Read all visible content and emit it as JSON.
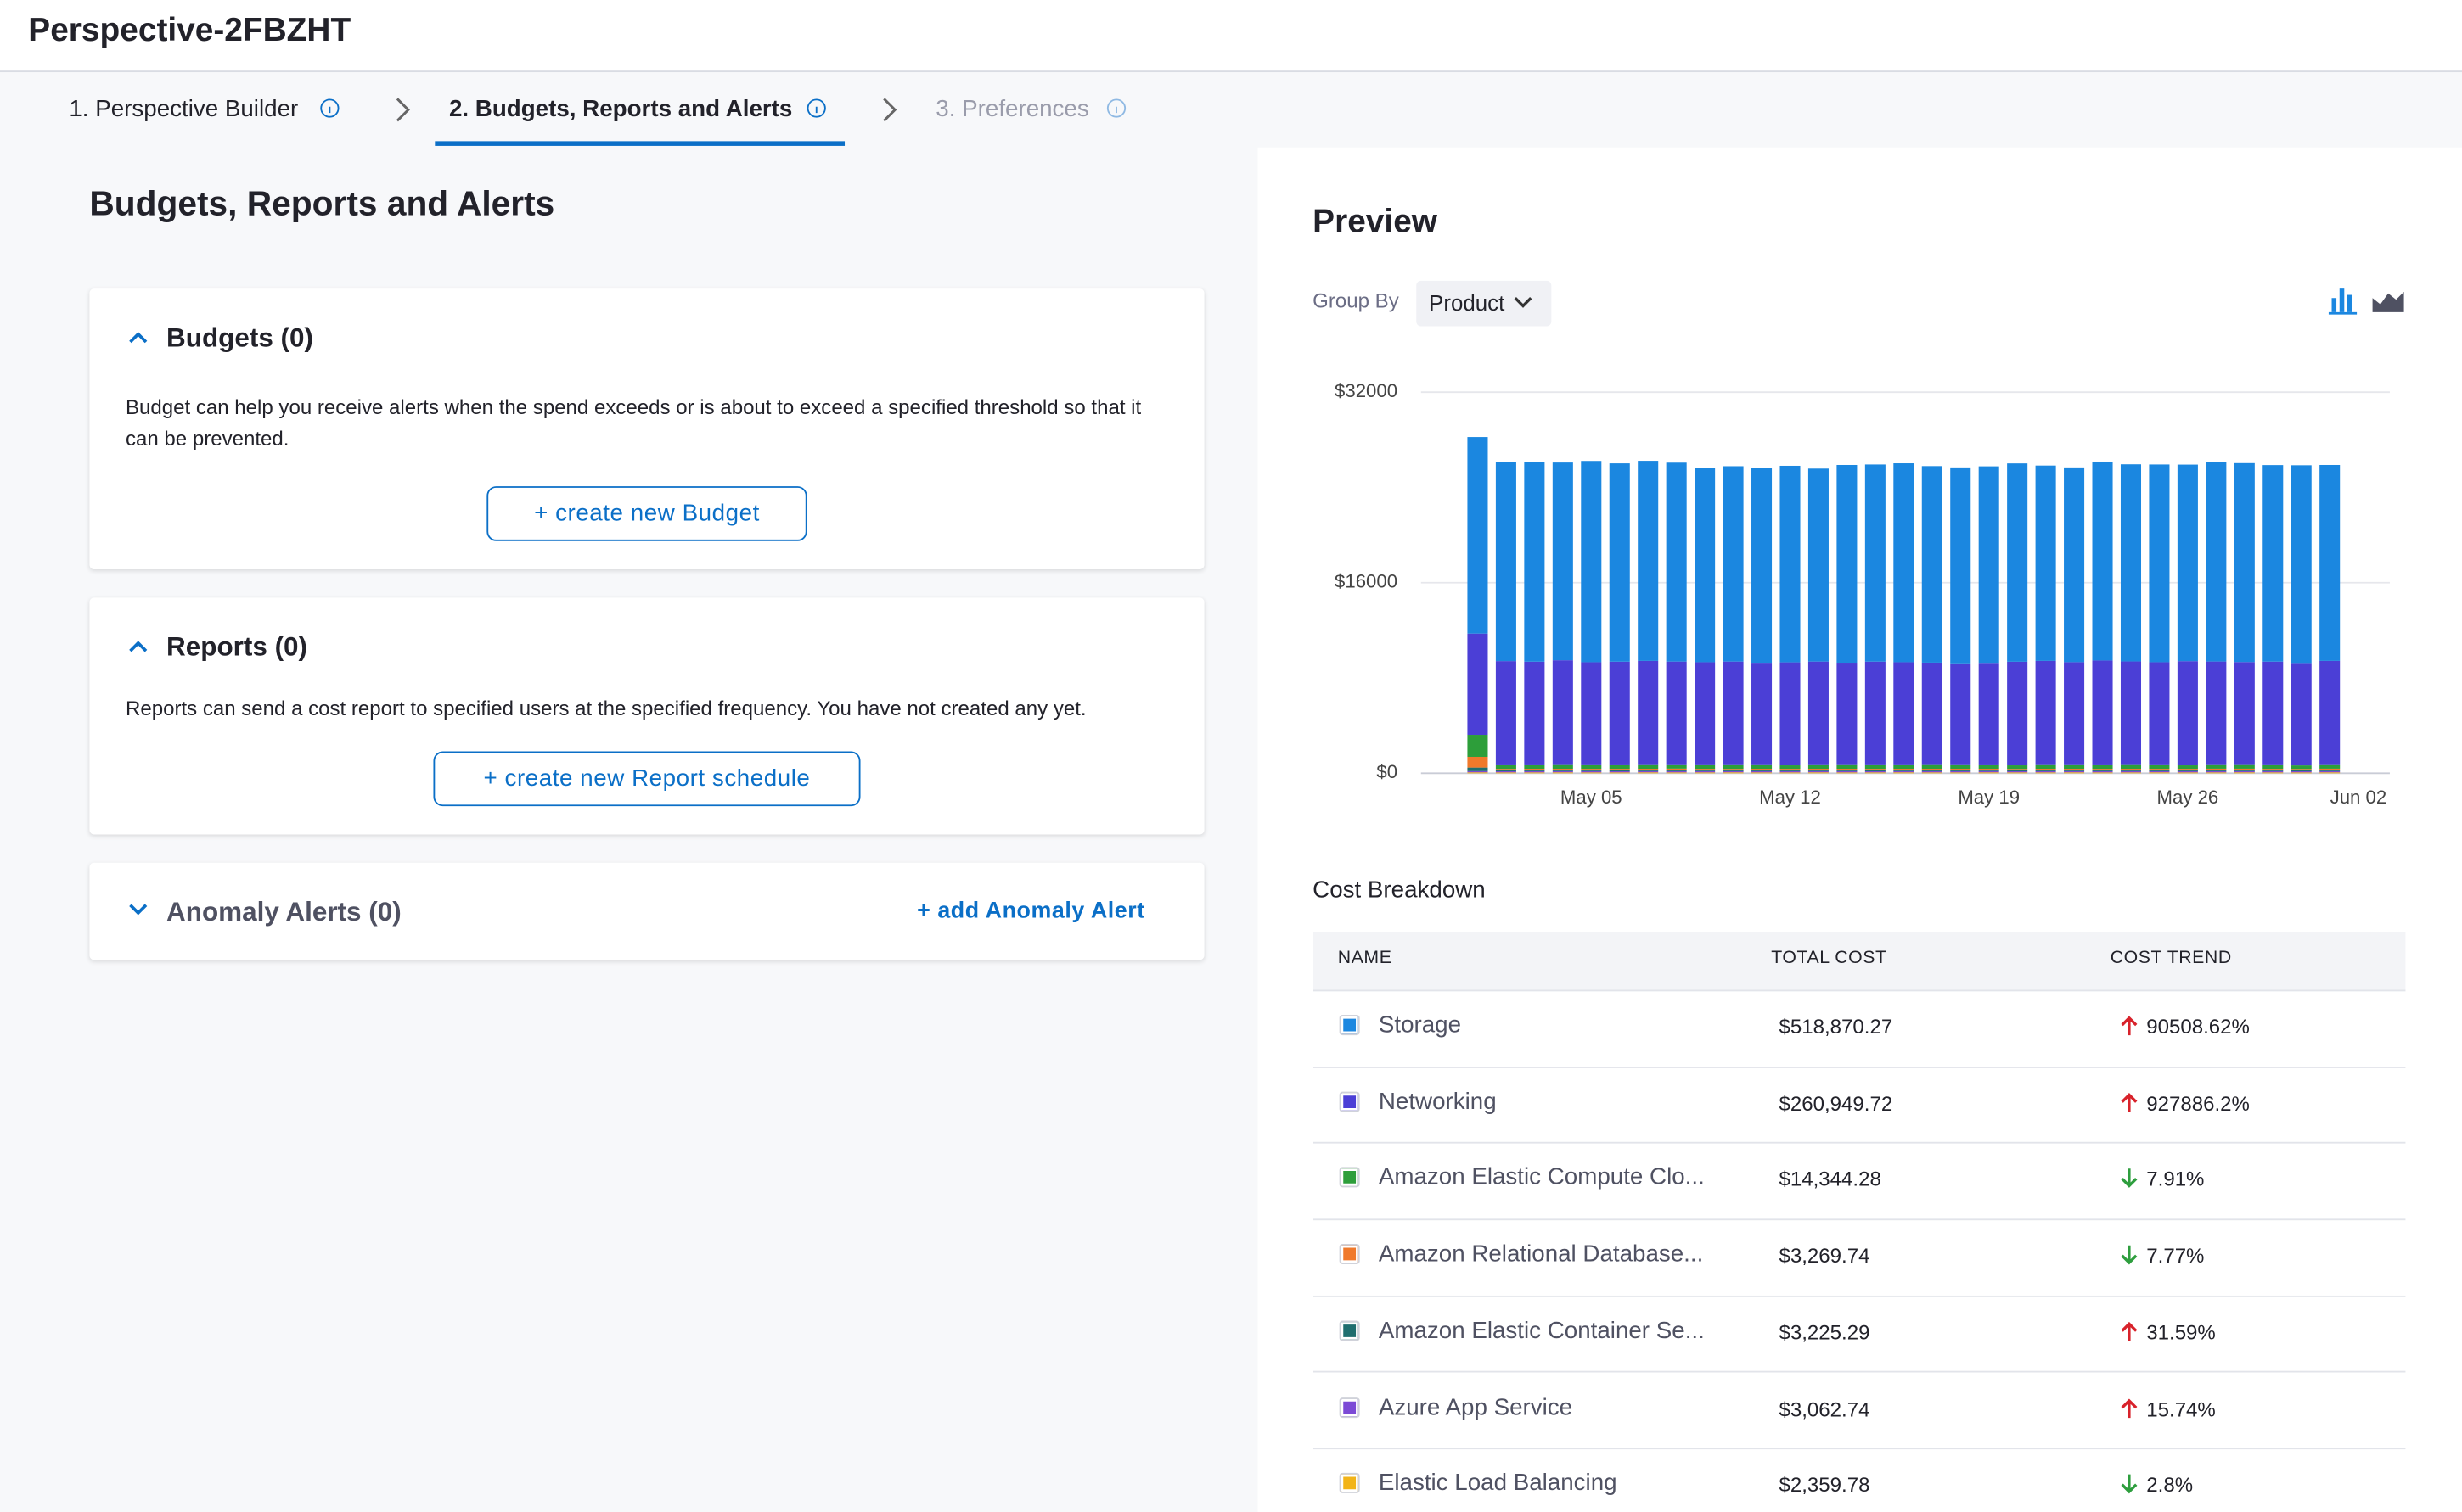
{
  "header": {
    "title": "Perspective-2FBZHT"
  },
  "steps": [
    "1. Perspective Builder",
    "2. Budgets, Reports and Alerts",
    "3. Preferences"
  ],
  "section_title": "Budgets, Reports and Alerts",
  "budgets": {
    "title": "Budgets (0)",
    "text": "Budget can help you receive alerts when the spend exceeds or is about to exceed a specified threshold so that it can be prevented.",
    "button": "+ create new Budget"
  },
  "reports": {
    "title": "Reports (0)",
    "text": "Reports can send a cost report to specified users at the specified frequency. You have not created any yet.",
    "button": "+ create new Report schedule"
  },
  "anomaly": {
    "title": "Anomaly Alerts (0)",
    "button": "+ add Anomaly Alert"
  },
  "preview": {
    "title": "Preview",
    "group_by_label": "Group By",
    "group_by_value": "Product"
  },
  "chart_data": {
    "type": "bar",
    "stacked": true,
    "grid": true,
    "categories": [
      null,
      null,
      null,
      null,
      "May 05",
      null,
      null,
      null,
      null,
      null,
      null,
      "May 12",
      null,
      null,
      null,
      null,
      null,
      null,
      "May 19",
      null,
      null,
      null,
      null,
      null,
      null,
      "May 26",
      null,
      null,
      null,
      null,
      null,
      null,
      "Jun 02"
    ],
    "ylim": [
      0,
      32000
    ],
    "yticks": [
      {
        "value": 0,
        "label": "$0"
      },
      {
        "value": 16000,
        "label": "$16000"
      },
      {
        "value": 32000,
        "label": "$32000"
      }
    ],
    "series": [
      {
        "name": "Storage",
        "color": "#1b87e0",
        "values": [
          16500,
          16700,
          16750,
          16600,
          16900,
          16650,
          16800,
          16700,
          16300,
          16400,
          16350,
          16500,
          16200,
          16600,
          16550,
          16700,
          16500,
          16450,
          16500,
          16650,
          16400,
          16350,
          16700,
          16550,
          16600,
          16500,
          16750,
          16700,
          16500,
          16600,
          16450,
          null,
          null
        ]
      },
      {
        "name": "Networking",
        "color": "#4b3fd6",
        "values": [
          8500,
          8750,
          8700,
          8800,
          8650,
          8700,
          8750,
          8700,
          8650,
          8700,
          8600,
          8650,
          8700,
          8600,
          8700,
          8650,
          8600,
          8550,
          8600,
          8700,
          8750,
          8650,
          8800,
          8700,
          8650,
          8750,
          8700,
          8650,
          8700,
          8600,
          8750,
          null,
          null
        ]
      },
      {
        "name": "Amazon Elastic Compute Clo...",
        "color": "#2d9e3a",
        "values": [
          1850,
          300,
          290,
          310,
          300,
          295,
          305,
          290,
          300,
          310,
          300,
          290,
          300,
          305,
          300,
          295,
          310,
          300,
          290,
          300,
          305,
          300,
          295,
          310,
          300,
          290,
          300,
          305,
          300,
          295,
          300,
          null,
          null
        ]
      },
      {
        "name": "Amazon Relational Database...",
        "color": "#f0792b",
        "values": [
          900,
          100,
          105,
          95,
          100,
          105,
          100,
          110,
          95,
          100,
          105,
          100,
          95,
          100,
          110,
          100,
          105,
          100,
          95,
          100,
          105,
          100,
          95,
          100,
          105,
          100,
          110,
          100,
          95,
          100,
          105,
          null,
          null
        ]
      },
      {
        "name": "Amazon Elastic Container Se...",
        "color": "#1f6f6f",
        "values": [
          300,
          100,
          100,
          105,
          95,
          100,
          100,
          105,
          100,
          95,
          100,
          100,
          105,
          100,
          95,
          100,
          100,
          105,
          100,
          95,
          100,
          100,
          105,
          100,
          95,
          100,
          100,
          105,
          100,
          95,
          100,
          null,
          null
        ]
      },
      {
        "name": "Azure App Service",
        "color": "#7c4ad6",
        "values": [
          100,
          95,
          100,
          100,
          105,
          95,
          100,
          100,
          105,
          95,
          100,
          100,
          100,
          105,
          95,
          100,
          100,
          100,
          105,
          95,
          100,
          100,
          100,
          105,
          95,
          100,
          100,
          100,
          105,
          95,
          100,
          null,
          null
        ]
      },
      {
        "name": "Elastic Load Balancing",
        "color": "#f2b418",
        "values": [
          80,
          75,
          75,
          80,
          75,
          75,
          80,
          75,
          75,
          80,
          75,
          75,
          80,
          75,
          75,
          80,
          75,
          75,
          80,
          75,
          75,
          80,
          75,
          75,
          80,
          75,
          75,
          80,
          75,
          75,
          80,
          null,
          null
        ]
      }
    ]
  },
  "cost_breakdown": {
    "title": "Cost Breakdown",
    "columns": [
      "NAME",
      "TOTAL COST",
      "COST TREND"
    ],
    "rows": [
      {
        "cost": "$518,870.27",
        "trend": "90508.62%",
        "direction": "up"
      },
      {
        "cost": "$260,949.72",
        "trend": "927886.2%",
        "direction": "up"
      },
      {
        "cost": "$14,344.28",
        "trend": "7.91%",
        "direction": "down"
      },
      {
        "cost": "$3,269.74",
        "trend": "7.77%",
        "direction": "down"
      },
      {
        "cost": "$3,225.29",
        "trend": "31.59%",
        "direction": "up"
      },
      {
        "cost": "$3,062.74",
        "trend": "15.74%",
        "direction": "up"
      },
      {
        "cost": "$2,359.78",
        "trend": "2.8%",
        "direction": "down"
      }
    ]
  }
}
